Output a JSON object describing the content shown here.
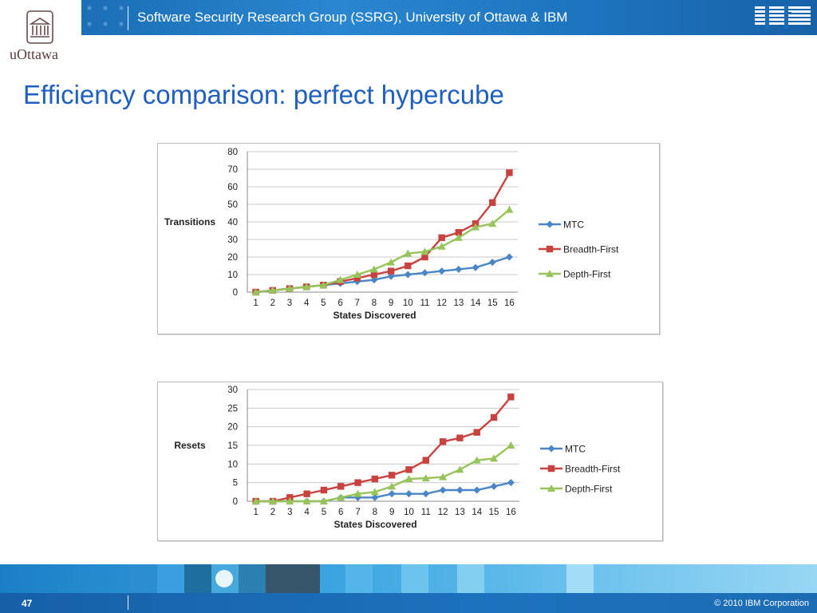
{
  "header": {
    "title": "Software Security Research Group (SSRG), University of Ottawa & IBM",
    "logo_text": "IBM",
    "university": "uOttawa"
  },
  "page_title": "Efficiency comparison: perfect hypercube",
  "footer": {
    "page_number": "47",
    "copyright": "© 2010 IBM Corporation"
  },
  "colors": {
    "header_blue": "#1d73bd",
    "title_blue": "#1f5fbf",
    "mtc": "#4a86c5",
    "bfs": "#c8423f",
    "dfs": "#97c45a"
  },
  "chart_data": [
    {
      "type": "line",
      "title": "",
      "xlabel": "States Discovered",
      "ylabel": "Transitions",
      "categories": [
        "1",
        "2",
        "3",
        "4",
        "5",
        "6",
        "7",
        "8",
        "9",
        "10",
        "11",
        "12",
        "13",
        "14",
        "15",
        "16"
      ],
      "ylim": [
        0,
        80
      ],
      "yticks": [
        0,
        10,
        20,
        30,
        40,
        50,
        60,
        70,
        80
      ],
      "grid": true,
      "legend": "right",
      "series": [
        {
          "name": "MTC",
          "marker": "diamond",
          "color": "#4a86c5",
          "values": [
            0,
            1,
            2,
            3,
            4,
            5,
            6,
            7,
            9,
            10,
            11,
            12,
            13,
            14,
            17,
            20
          ]
        },
        {
          "name": "Breadth-First",
          "marker": "square",
          "color": "#c8423f",
          "values": [
            0,
            1,
            2,
            3,
            4,
            6,
            8,
            10,
            12,
            15,
            20,
            31,
            34,
            39,
            51,
            68
          ]
        },
        {
          "name": "Depth-First",
          "marker": "triangle",
          "color": "#97c45a",
          "values": [
            0,
            1,
            2,
            3,
            4,
            7,
            10,
            13,
            17,
            22,
            23,
            26,
            31,
            37,
            39,
            47
          ]
        }
      ]
    },
    {
      "type": "line",
      "title": "",
      "xlabel": "States Discovered",
      "ylabel": "Resets",
      "categories": [
        "1",
        "2",
        "3",
        "4",
        "5",
        "6",
        "7",
        "8",
        "9",
        "10",
        "11",
        "12",
        "13",
        "14",
        "15",
        "16"
      ],
      "ylim": [
        0,
        30
      ],
      "yticks": [
        0,
        5,
        10,
        15,
        20,
        25,
        30
      ],
      "grid": true,
      "legend": "right",
      "series": [
        {
          "name": "MTC",
          "marker": "diamond",
          "color": "#4a86c5",
          "values": [
            0,
            0,
            0,
            0,
            0,
            1,
            1,
            1,
            2,
            2,
            2,
            3,
            3,
            3,
            4,
            5
          ]
        },
        {
          "name": "Breadth-First",
          "marker": "square",
          "color": "#c8423f",
          "values": [
            0,
            0,
            1,
            2,
            3,
            4,
            5,
            6,
            7,
            8.5,
            11,
            16,
            17,
            18.5,
            22.5,
            28
          ]
        },
        {
          "name": "Depth-First",
          "marker": "triangle",
          "color": "#97c45a",
          "values": [
            0,
            0,
            0,
            0,
            0,
            1,
            2,
            2.5,
            4,
            6,
            6.2,
            6.5,
            8.5,
            11,
            11.5,
            15
          ]
        }
      ]
    }
  ]
}
